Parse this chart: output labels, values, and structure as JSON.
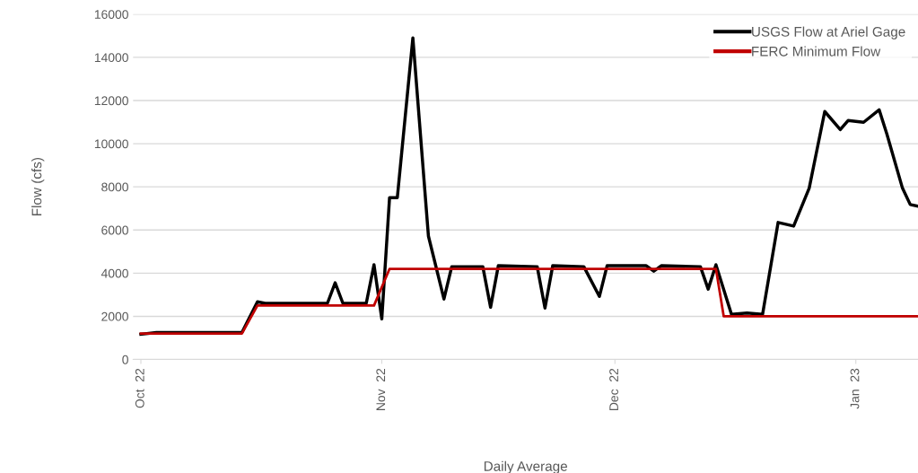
{
  "chart_data": {
    "type": "line",
    "xlabel": "Daily Average",
    "ylabel": "Flow (cfs)",
    "ylim": [
      0,
      16000
    ],
    "yticks": [
      0,
      2000,
      4000,
      6000,
      8000,
      10000,
      12000,
      14000,
      16000
    ],
    "xlim": [
      "2022-09-30",
      "2023-01-09"
    ],
    "xticks": [
      {
        "value": "2022-10-01",
        "label": "Oct  22"
      },
      {
        "value": "2022-11-01",
        "label": "Nov  22"
      },
      {
        "value": "2022-12-01",
        "label": "Dec  22"
      },
      {
        "value": "2023-01-01",
        "label": "Jan  23"
      }
    ],
    "grid": "y",
    "legend": "top right",
    "line_style": "solid",
    "marker": "none",
    "series": [
      {
        "name": "USGS Flow at Ariel Gage",
        "color": "#000000",
        "x": [
          "2022-10-01",
          "2022-10-03",
          "2022-10-14",
          "2022-10-16",
          "2022-10-17",
          "2022-10-25",
          "2022-10-26",
          "2022-10-27",
          "2022-10-30",
          "2022-10-31",
          "2022-11-01",
          "2022-11-02",
          "2022-11-03",
          "2022-11-05",
          "2022-11-07",
          "2022-11-09",
          "2022-11-10",
          "2022-11-14",
          "2022-11-15",
          "2022-11-16",
          "2022-11-21",
          "2022-11-22",
          "2022-11-23",
          "2022-11-27",
          "2022-11-29",
          "2022-11-30",
          "2022-12-05",
          "2022-12-06",
          "2022-12-07",
          "2022-12-12",
          "2022-12-13",
          "2022-12-14",
          "2022-12-16",
          "2022-12-18",
          "2022-12-20",
          "2022-12-22",
          "2022-12-24",
          "2022-12-26",
          "2022-12-28",
          "2022-12-30",
          "2022-12-31",
          "2023-01-02",
          "2023-01-04",
          "2023-01-05",
          "2023-01-07",
          "2023-01-08",
          "2023-01-09"
        ],
        "values": [
          1170,
          1250,
          1250,
          2670,
          2600,
          2600,
          3550,
          2600,
          2600,
          4390,
          1880,
          7500,
          7500,
          14900,
          5720,
          2800,
          4300,
          4300,
          2420,
          4350,
          4300,
          2380,
          4350,
          4300,
          2920,
          4350,
          4350,
          4090,
          4350,
          4300,
          3260,
          4390,
          2090,
          2150,
          2090,
          6350,
          6180,
          7940,
          11490,
          10650,
          11070,
          10990,
          11570,
          10440,
          7940,
          7180,
          7100
        ]
      },
      {
        "name": "FERC Minimum Flow",
        "color": "#c00000",
        "x": [
          "2022-10-01",
          "2022-10-14",
          "2022-10-16",
          "2022-10-31",
          "2022-11-02",
          "2022-12-14",
          "2022-12-15",
          "2023-01-09"
        ],
        "values": [
          1200,
          1200,
          2500,
          2500,
          4200,
          4200,
          2000,
          2000
        ]
      }
    ]
  }
}
